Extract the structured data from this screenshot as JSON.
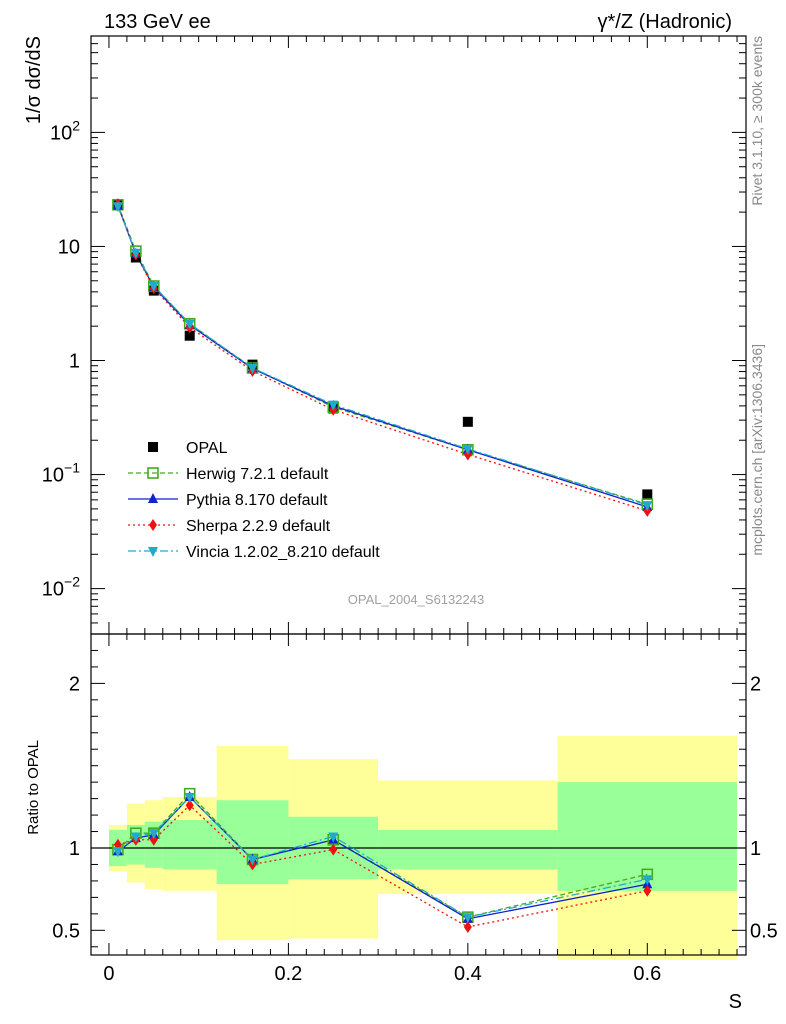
{
  "chart_data": {
    "type": "scatter",
    "title_left": "133 GeV ee",
    "title_right": "γ*/Z (Hadronic)",
    "ylabel": "1/σ dσ/dS",
    "xlabel": "S",
    "ratio_ylabel": "Ratio to OPAL",
    "watermark": "OPAL_2004_S6132243",
    "side_text_top": "Rivet 3.1.10, ≥ 300k events",
    "side_text_bottom": "mcplots.cern.ch [arXiv:1306.3436]",
    "xlim": [
      -0.02,
      0.71
    ],
    "ylim_log": [
      0.004,
      700
    ],
    "ratio_ylim": [
      0.35,
      2.3
    ],
    "x_ticks": [
      "0",
      "0.2",
      "0.4",
      "0.6"
    ],
    "x_tick_values": [
      0,
      0.2,
      0.4,
      0.6
    ],
    "y_ticks": [
      {
        "value": 0.01,
        "base": "10",
        "exp": "−2"
      },
      {
        "value": 0.1,
        "base": "10",
        "exp": "−1"
      },
      {
        "value": 1,
        "base": "1",
        "exp": ""
      },
      {
        "value": 10,
        "base": "10",
        "exp": ""
      },
      {
        "value": 100,
        "base": "10",
        "exp": "2"
      }
    ],
    "ratio_ticks": [
      {
        "value": 0.5,
        "label": "0.5"
      },
      {
        "value": 1,
        "label": "1"
      },
      {
        "value": 2,
        "label": "2"
      }
    ],
    "data": {
      "name": "OPAL",
      "x": [
        0.01,
        0.03,
        0.05,
        0.09,
        0.16,
        0.25,
        0.4,
        0.6
      ],
      "y": [
        23.0,
        8.0,
        4.1,
        1.65,
        0.92,
        0.38,
        0.29,
        0.067
      ]
    },
    "bands": [
      {
        "xlo": 0.0,
        "xhi": 0.02,
        "in_lo": 0.89,
        "in_hi": 1.11,
        "out_lo": 0.86,
        "out_hi": 1.14
      },
      {
        "xlo": 0.02,
        "xhi": 0.04,
        "in_lo": 0.9,
        "in_hi": 1.14,
        "out_lo": 0.79,
        "out_hi": 1.27
      },
      {
        "xlo": 0.04,
        "xhi": 0.06,
        "in_lo": 0.88,
        "in_hi": 1.16,
        "out_lo": 0.75,
        "out_hi": 1.29
      },
      {
        "xlo": 0.06,
        "xhi": 0.12,
        "in_lo": 0.87,
        "in_hi": 1.17,
        "out_lo": 0.74,
        "out_hi": 1.31
      },
      {
        "xlo": 0.12,
        "xhi": 0.2,
        "in_lo": 0.78,
        "in_hi": 1.29,
        "out_lo": 0.44,
        "out_hi": 1.62
      },
      {
        "xlo": 0.2,
        "xhi": 0.3,
        "in_lo": 0.81,
        "in_hi": 1.19,
        "out_lo": 0.45,
        "out_hi": 1.54
      },
      {
        "xlo": 0.3,
        "xhi": 0.5,
        "in_lo": 0.87,
        "in_hi": 1.11,
        "out_lo": 0.72,
        "out_hi": 1.41
      },
      {
        "xlo": 0.5,
        "xhi": 0.7,
        "in_lo": 0.74,
        "in_hi": 1.4,
        "out_lo": 0.32,
        "out_hi": 1.68
      }
    ],
    "series": [
      {
        "name": "Herwig 7.2.1 default",
        "color": "#44aa22",
        "dash": "5,3",
        "marker": "open-square",
        "values": [
          23.2,
          9.1,
          4.5,
          2.1,
          0.86,
          0.39,
          0.165,
          0.055
        ],
        "ratio": [
          0.99,
          1.09,
          1.09,
          1.33,
          0.93,
          1.05,
          0.58,
          0.84
        ]
      },
      {
        "name": "Pythia 8.170 default",
        "color": "#1122cc",
        "dash": "",
        "marker": "triangle-up",
        "values": [
          22.8,
          8.6,
          4.4,
          2.05,
          0.85,
          0.4,
          0.165,
          0.052
        ],
        "ratio": [
          0.98,
          1.06,
          1.08,
          1.31,
          0.93,
          1.05,
          0.57,
          0.78
        ]
      },
      {
        "name": "Sherpa 2.2.9 default",
        "color": "#ee1111",
        "dash": "2,3",
        "marker": "diamond",
        "values": [
          23.5,
          8.5,
          4.3,
          1.95,
          0.81,
          0.37,
          0.15,
          0.048
        ],
        "ratio": [
          1.02,
          1.05,
          1.05,
          1.26,
          0.9,
          0.99,
          0.52,
          0.74
        ]
      },
      {
        "name": "Vincia 1.2.02_8.210 default",
        "color": "#22aacc",
        "dash": "8,3,2,3",
        "marker": "triangle-down",
        "values": [
          22.5,
          8.8,
          4.5,
          2.1,
          0.86,
          0.41,
          0.168,
          0.054
        ],
        "ratio": [
          0.98,
          1.07,
          1.09,
          1.31,
          0.93,
          1.07,
          0.58,
          0.81
        ]
      }
    ]
  }
}
